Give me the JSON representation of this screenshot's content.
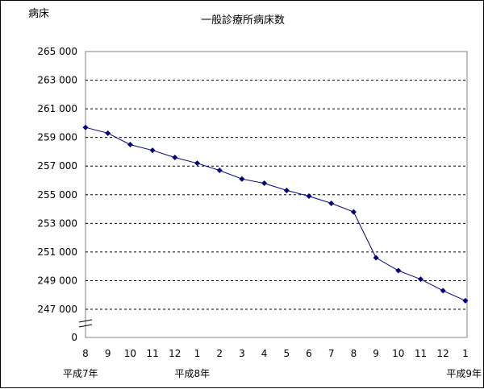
{
  "chart_data": {
    "type": "line",
    "title": "一般診療所病床数",
    "ylabel": "病床",
    "xlabel": "",
    "y_tick_labels": [
      "265 000",
      "263 000",
      "261 000",
      "259 000",
      "257 000",
      "255 000",
      "253 000",
      "251 000",
      "249 000",
      "247 000",
      "0"
    ],
    "y_ticks": [
      265000,
      263000,
      261000,
      259000,
      257000,
      255000,
      253000,
      251000,
      249000,
      247000
    ],
    "ylim": [
      247000,
      265000
    ],
    "axis_break": true,
    "grid": "horizontal-dashed",
    "legend": "none",
    "categories": [
      "8",
      "9",
      "10",
      "11",
      "12",
      "1",
      "2",
      "3",
      "4",
      "5",
      "6",
      "7",
      "8",
      "9",
      "10",
      "11",
      "12",
      "1"
    ],
    "era_labels": [
      {
        "text": "平成7年",
        "category_index": 0
      },
      {
        "text": "平成8年",
        "category_index": 5
      },
      {
        "text": "平成9年",
        "category_index": 17
      }
    ],
    "series": [
      {
        "values": [
          259700,
          259300,
          258500,
          258100,
          257600,
          257200,
          256700,
          256100,
          255800,
          255300,
          254900,
          254400,
          253800,
          250600,
          249700,
          249100,
          248300,
          247600
        ]
      }
    ],
    "colors": {
      "line": "#00007f",
      "marker": "#00007f",
      "grid": "#000000",
      "axis": "#808080"
    }
  }
}
